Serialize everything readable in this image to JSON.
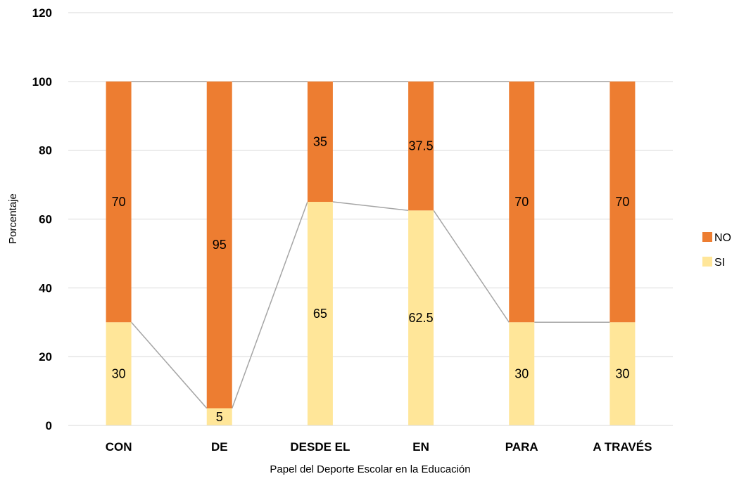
{
  "chart_data": {
    "type": "bar",
    "stacked": true,
    "categories": [
      "CON",
      "DE",
      "DESDE EL",
      "EN",
      "PARA",
      "A TRAVÉS"
    ],
    "series": [
      {
        "name": "SI",
        "color": "#FFE699",
        "values": [
          30,
          5,
          65,
          62.5,
          30,
          30
        ]
      },
      {
        "name": "NO",
        "color": "#ED7D31",
        "values": [
          70,
          95,
          35,
          37.5,
          70,
          70
        ]
      }
    ],
    "series_lines": true,
    "series_line_color": "#A5A5A5",
    "xlabel": "Papel del Deporte Escolar en la Educación",
    "ylabel": "Porcentaje",
    "ylim": [
      0,
      120
    ],
    "yticks": [
      0,
      20,
      40,
      60,
      80,
      100,
      120
    ],
    "grid": true,
    "legend": {
      "position": "right",
      "order": [
        "NO",
        "SI"
      ]
    },
    "data_labels": true
  }
}
